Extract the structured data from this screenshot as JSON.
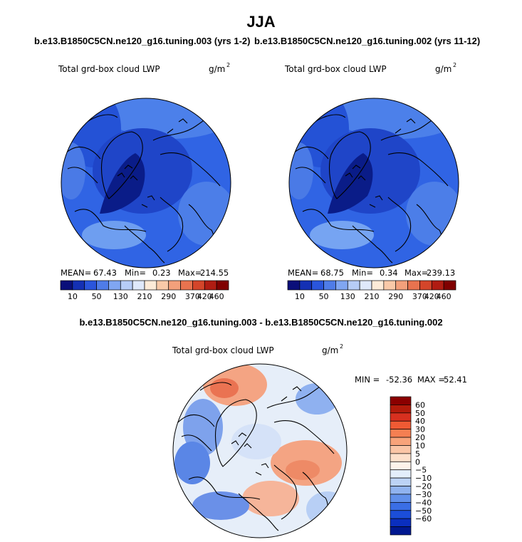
{
  "page": {
    "season": "JJA",
    "case_left": "b.e13.B1850C5CN.ne120_g16.tuning.003 (yrs 1-2)",
    "case_right": "b.e13.B1850C5CN.ne120_g16.tuning.002 (yrs 11-12)",
    "diff_title": "b.e13.B1850C5CN.ne120_g16.tuning.003 - b.e13.B1850C5CN.ne120_g16.tuning.002"
  },
  "chart_data": [
    {
      "type": "heatmap",
      "projection": "north polar stereographic",
      "variable": "Total grd-box cloud LWP",
      "units": "g/m",
      "units_exponent": "2",
      "stats": {
        "mean_label": "MEAN=",
        "mean": "67.43",
        "min_label": "Min=",
        "min": "0.23",
        "max_label": "Max=",
        "max": "214.55"
      },
      "colorbar": {
        "orientation": "horizontal",
        "levels": [
          "10",
          "50",
          "130",
          "210",
          "290",
          "370",
          "420",
          "460"
        ],
        "colors": [
          "#0a0f7a",
          "#1430b4",
          "#2a55dc",
          "#4f7ce8",
          "#80a6f2",
          "#b6ccf7",
          "#dfe9fb",
          "#fdebd8",
          "#f9c9a8",
          "#f3a07b",
          "#e8734f",
          "#d4452a",
          "#b01c12",
          "#800000"
        ]
      },
      "field_colors": {
        "ocean": "#2c60e4",
        "arctic": "#1e44c8",
        "greenland": "#0c1e8c",
        "midlat": "#4c7ee8",
        "light": "#6e9ef0"
      }
    },
    {
      "type": "heatmap",
      "projection": "north polar stereographic",
      "variable": "Total grd-box cloud LWP",
      "units": "g/m",
      "units_exponent": "2",
      "stats": {
        "mean_label": "MEAN=",
        "mean": "68.75",
        "min_label": "Min=",
        "min": "0.34",
        "max_label": "Max=",
        "max": "239.13"
      },
      "colorbar": {
        "orientation": "horizontal",
        "levels": [
          "10",
          "50",
          "130",
          "210",
          "290",
          "370",
          "420",
          "460"
        ],
        "colors": [
          "#0a0f7a",
          "#1430b4",
          "#2a55dc",
          "#4f7ce8",
          "#80a6f2",
          "#b6ccf7",
          "#dfe9fb",
          "#fdebd8",
          "#f9c9a8",
          "#f3a07b",
          "#e8734f",
          "#d4452a",
          "#b01c12",
          "#800000"
        ]
      },
      "field_colors": {
        "ocean": "#2c60e4",
        "arctic": "#1e44c8",
        "greenland": "#0c1e8c",
        "midlat": "#4c7ee8",
        "light": "#6e9ef0"
      }
    },
    {
      "type": "heatmap",
      "projection": "north polar stereographic",
      "variable": "Total grd-box cloud LWP",
      "units": "g/m",
      "units_exponent": "2",
      "stats": {
        "min_label": "MIN =",
        "min": "-52.36",
        "max_label": "MAX =",
        "max": "52.41"
      },
      "colorbar": {
        "orientation": "vertical",
        "levels": [
          "60",
          "50",
          "40",
          "30",
          "20",
          "10",
          "5",
          "0",
          "−5",
          "−10",
          "−20",
          "−30",
          "−40",
          "−50",
          "−60"
        ],
        "colors": [
          "#8b0000",
          "#b31b0b",
          "#d7301f",
          "#ef5a34",
          "#f57f52",
          "#f8a37a",
          "#fac5a6",
          "#fde0cb",
          "#fdf3ea",
          "#e3eefb",
          "#bcd3f6",
          "#90b3ef",
          "#6190ea",
          "#3a6ee5",
          "#1b4ed9",
          "#0a2fbf",
          "#001890"
        ]
      },
      "field_colors": {
        "neutral": "#e9eff8",
        "warm": "#f29a78",
        "cool": "#6e96ea"
      }
    }
  ]
}
